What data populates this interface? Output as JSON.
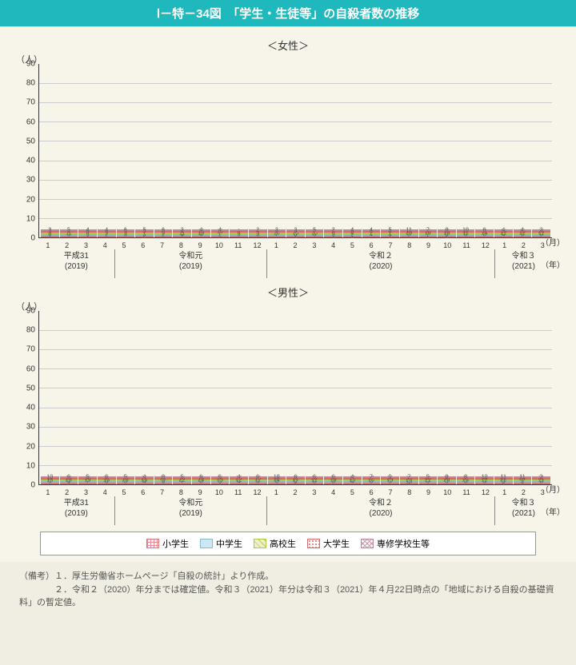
{
  "title": "Ⅰ－特－34図　「学生・生徒等」の自殺者数の推移",
  "charts": [
    {
      "subtitle": "＜女性＞",
      "ymax": 90,
      "ytick": 10,
      "ylabel": "（人）",
      "months": [
        "1",
        "2",
        "3",
        "4",
        "5",
        "6",
        "7",
        "8",
        "9",
        "10",
        "11",
        "12",
        "1",
        "2",
        "3",
        "4",
        "5",
        "6",
        "7",
        "8",
        "9",
        "10",
        "11",
        "12",
        "1",
        "2",
        "3"
      ],
      "groups": [
        {
          "span": 4,
          "era": "平成31",
          "yr": "(2019)"
        },
        {
          "span": 8,
          "era": "令和元",
          "yr": "(2019)"
        },
        {
          "span": 12,
          "era": "令和２",
          "yr": "(2020)"
        },
        {
          "span": 3,
          "era": "令和３",
          "yr": "(2021)"
        }
      ],
      "series": [
        {
          "k": "elem",
          "v": [
            1,
            0,
            1,
            0,
            0,
            2,
            0,
            1,
            0,
            0,
            0,
            0,
            0,
            2,
            0,
            1,
            1,
            0,
            1,
            0,
            2,
            2,
            0,
            0,
            0,
            0,
            0
          ]
        },
        {
          "k": "jhs",
          "v": [
            6,
            3,
            3,
            2,
            3,
            3,
            2,
            4,
            4,
            2,
            5,
            3,
            7,
            3,
            3,
            5,
            2,
            4,
            4,
            8,
            7,
            3,
            3,
            8,
            4,
            6,
            6
          ]
        },
        {
          "k": "hs",
          "v": [
            8,
            11,
            8,
            9,
            9,
            7,
            9,
            11,
            10,
            7,
            8,
            3,
            10,
            15,
            10,
            6,
            4,
            7,
            7,
            20,
            16,
            18,
            11,
            14,
            11,
            12,
            11
          ]
        },
        {
          "k": "uni",
          "v": [
            5,
            4,
            6,
            4,
            9,
            5,
            8,
            4,
            10,
            13,
            8,
            6,
            9,
            9,
            7,
            3,
            6,
            6,
            8,
            13,
            10,
            13,
            12,
            11,
            14,
            13,
            14
          ]
        },
        {
          "k": "voc",
          "v": [
            3,
            5,
            4,
            4,
            6,
            5,
            6,
            3,
            4,
            4,
            0,
            2,
            3,
            3,
            5,
            2,
            4,
            4,
            5,
            11,
            7,
            8,
            10,
            6,
            4,
            4,
            3
          ]
        }
      ]
    },
    {
      "subtitle": "＜男性＞",
      "ymax": 90,
      "ytick": 10,
      "ylabel": "（人）",
      "months": [
        "1",
        "2",
        "3",
        "4",
        "5",
        "6",
        "7",
        "8",
        "9",
        "10",
        "11",
        "12",
        "1",
        "2",
        "3",
        "4",
        "5",
        "6",
        "7",
        "8",
        "9",
        "10",
        "11",
        "12",
        "1",
        "2",
        "3"
      ],
      "groups": [
        {
          "span": 4,
          "era": "平成31",
          "yr": "(2019)"
        },
        {
          "span": 8,
          "era": "令和元",
          "yr": "(2019)"
        },
        {
          "span": 12,
          "era": "令和２",
          "yr": "(2020)"
        },
        {
          "span": 3,
          "era": "令和３",
          "yr": "(2021)"
        }
      ],
      "series": [
        {
          "k": "elem",
          "v": [
            0,
            1,
            0,
            0,
            0,
            0,
            0,
            0,
            0,
            1,
            0,
            0,
            0,
            2,
            0,
            0,
            0,
            0,
            0,
            1,
            0,
            0,
            0,
            0,
            2,
            1,
            0
          ]
        },
        {
          "k": "jhs",
          "v": [
            5,
            4,
            7,
            8,
            5,
            4,
            6,
            7,
            8,
            5,
            4,
            5,
            6,
            4,
            8,
            3,
            4,
            6,
            5,
            13,
            6,
            5,
            6,
            5,
            5,
            3,
            8
          ]
        },
        {
          "k": "hs",
          "v": [
            18,
            20,
            15,
            16,
            20,
            16,
            9,
            22,
            24,
            13,
            12,
            11,
            14,
            17,
            11,
            16,
            13,
            16,
            15,
            23,
            21,
            26,
            26,
            12,
            22,
            9,
            11
          ]
        },
        {
          "k": "uni",
          "v": [
            14,
            29,
            36,
            31,
            13,
            22,
            22,
            14,
            19,
            24,
            25,
            15,
            18,
            12,
            24,
            13,
            17,
            17,
            24,
            33,
            43,
            30,
            31,
            34,
            22,
            24,
            32
          ]
        },
        {
          "k": "voc",
          "v": [
            10,
            6,
            5,
            6,
            5,
            4,
            8,
            5,
            6,
            6,
            4,
            6,
            10,
            6,
            6,
            6,
            4,
            7,
            9,
            7,
            5,
            8,
            8,
            10,
            11,
            11,
            3
          ]
        }
      ]
    }
  ],
  "legend": [
    {
      "k": "elem",
      "label": "小学生"
    },
    {
      "k": "jhs",
      "label": "中学生"
    },
    {
      "k": "hs",
      "label": "高校生"
    },
    {
      "k": "uni",
      "label": "大学生"
    },
    {
      "k": "voc",
      "label": "専修学校生等"
    }
  ],
  "notes": [
    "（備考）１．厚生労働省ホームページ「自殺の統計」より作成。",
    "　　　　２．令和２（2020）年分までは確定値。令和３（2021）年分は令和３（2021）年４月22日時点の「地域における自殺の基礎資料」の暫定値。"
  ],
  "axis_month": "（月）",
  "axis_year": "（年）"
}
